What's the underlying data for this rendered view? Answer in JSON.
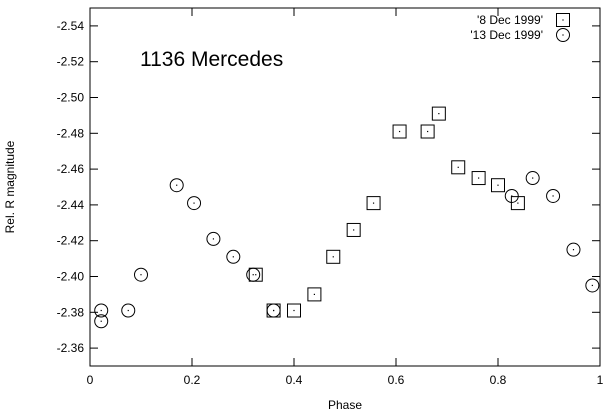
{
  "chart_data": {
    "type": "scatter",
    "xlabel": "Phase",
    "ylabel": "Rel. R magnitude",
    "xlim": [
      0,
      1
    ],
    "ylim": [
      -2.35,
      -2.55
    ],
    "y_inverted": true,
    "grid": false,
    "legend_position": "top-right",
    "annotation": "1136 Mercedes",
    "x_ticks": [
      0,
      0.2,
      0.4,
      0.6,
      0.8,
      1
    ],
    "x_tick_labels": [
      "0",
      "0.2",
      "0.4",
      "0.6",
      "0.8",
      "1"
    ],
    "y_ticks": [
      -2.54,
      -2.52,
      -2.5,
      -2.48,
      -2.46,
      -2.44,
      -2.42,
      -2.4,
      -2.38,
      -2.36
    ],
    "y_tick_labels": [
      "-2.54",
      "-2.52",
      "-2.50",
      "-2.48",
      "-2.46",
      "-2.44",
      "-2.42",
      "-2.40",
      "-2.38",
      "-2.36"
    ],
    "series": [
      {
        "name": "'8 Dec 1999'",
        "marker": "square",
        "points": [
          {
            "x": 0.325,
            "y": -2.401
          },
          {
            "x": 0.36,
            "y": -2.381
          },
          {
            "x": 0.4,
            "y": -2.381
          },
          {
            "x": 0.44,
            "y": -2.39
          },
          {
            "x": 0.477,
            "y": -2.411
          },
          {
            "x": 0.517,
            "y": -2.426
          },
          {
            "x": 0.556,
            "y": -2.441
          },
          {
            "x": 0.607,
            "y": -2.481
          },
          {
            "x": 0.662,
            "y": -2.481
          },
          {
            "x": 0.684,
            "y": -2.491
          },
          {
            "x": 0.722,
            "y": -2.461
          },
          {
            "x": 0.762,
            "y": -2.455
          },
          {
            "x": 0.8,
            "y": -2.451
          },
          {
            "x": 0.839,
            "y": -2.441
          }
        ]
      },
      {
        "name": "'13 Dec 1999'",
        "marker": "circle",
        "points": [
          {
            "x": 0.022,
            "y": -2.381
          },
          {
            "x": 0.022,
            "y": -2.375
          },
          {
            "x": 0.075,
            "y": -2.381
          },
          {
            "x": 0.1,
            "y": -2.401
          },
          {
            "x": 0.17,
            "y": -2.451
          },
          {
            "x": 0.204,
            "y": -2.441
          },
          {
            "x": 0.242,
            "y": -2.421
          },
          {
            "x": 0.281,
            "y": -2.411
          },
          {
            "x": 0.32,
            "y": -2.401
          },
          {
            "x": 0.36,
            "y": -2.381
          },
          {
            "x": 0.827,
            "y": -2.445
          },
          {
            "x": 0.868,
            "y": -2.455
          },
          {
            "x": 0.908,
            "y": -2.445
          },
          {
            "x": 0.948,
            "y": -2.415
          },
          {
            "x": 0.985,
            "y": -2.395
          }
        ]
      }
    ]
  }
}
